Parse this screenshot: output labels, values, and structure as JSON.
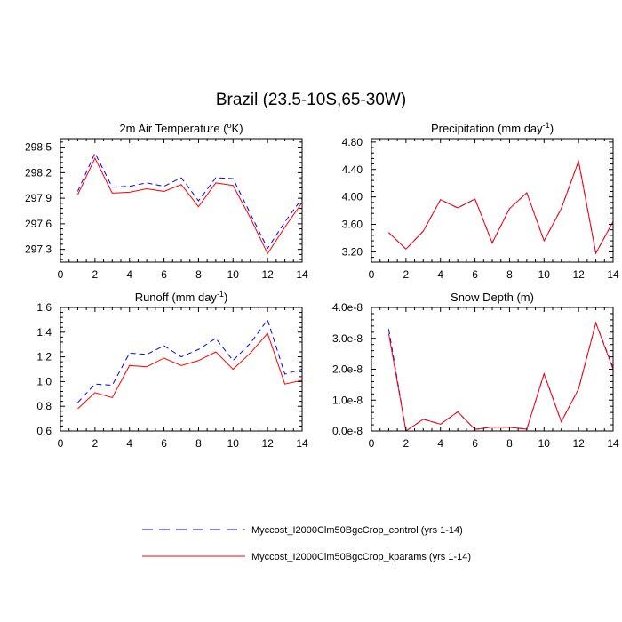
{
  "figure": {
    "title": "Brazil (23.5-10S,65-30W)"
  },
  "legend": {
    "position": "bottom-center",
    "entries": [
      {
        "label": "Myccost_I2000Clm50BgcCrop_control (yrs 1-14)",
        "color": "#0000ff",
        "style": "dashed"
      },
      {
        "label": "Myccost_I2000Clm50BgcCrop_kparams (yrs 1-14)",
        "color": "#ff0000",
        "style": "solid"
      }
    ]
  },
  "chart_data": [
    {
      "type": "line",
      "title": "2m Air Temperature (",
      "title_sup": "o",
      "title_suffix": "K)",
      "xlabel": "",
      "ylabel": "",
      "xlim": [
        0,
        14
      ],
      "ylim": [
        297.15,
        298.6
      ],
      "x_ticks": [
        0,
        2,
        4,
        6,
        8,
        10,
        12,
        14
      ],
      "x_tick_labels": [
        "0",
        "2",
        "4",
        "6",
        "8",
        "10",
        "12",
        "14"
      ],
      "y_ticks": [
        297.3,
        297.6,
        297.9,
        298.2,
        298.5
      ],
      "y_tick_labels": [
        "297.3",
        "297.6",
        "297.9",
        "298.2",
        "298.5"
      ],
      "grid": false,
      "x": [
        1,
        2,
        3,
        4,
        5,
        6,
        7,
        8,
        9,
        10,
        11,
        12,
        13,
        14
      ],
      "series": [
        {
          "name": "Myccost_I2000Clm50BgcCrop_control (yrs 1-14)",
          "color": "#0000ff",
          "dash": "dashed",
          "values": [
            297.98,
            298.43,
            298.03,
            298.04,
            298.08,
            298.04,
            298.14,
            297.87,
            298.14,
            298.13,
            297.72,
            297.31,
            297.62,
            297.9
          ]
        },
        {
          "name": "Myccost_I2000Clm50BgcCrop_kparams (yrs 1-14)",
          "color": "#ff0000",
          "dash": "solid",
          "values": [
            297.94,
            298.37,
            297.96,
            297.97,
            298.01,
            297.98,
            298.06,
            297.8,
            298.08,
            298.05,
            297.67,
            297.25,
            297.56,
            297.85
          ]
        }
      ]
    },
    {
      "type": "line",
      "title": "Precipitation (mm day",
      "title_sup": "-1",
      "title_suffix": ")",
      "xlabel": "",
      "ylabel": "",
      "xlim": [
        0,
        14
      ],
      "ylim": [
        3.05,
        4.85
      ],
      "x_ticks": [
        0,
        2,
        4,
        6,
        8,
        10,
        12,
        14
      ],
      "x_tick_labels": [
        "0",
        "2",
        "4",
        "6",
        "8",
        "10",
        "12",
        "14"
      ],
      "y_ticks": [
        3.2,
        3.6,
        4.0,
        4.4,
        4.8
      ],
      "y_tick_labels": [
        "3.20",
        "3.60",
        "4.00",
        "4.40",
        "4.80"
      ],
      "grid": false,
      "x": [
        1,
        2,
        3,
        4,
        5,
        6,
        7,
        8,
        9,
        10,
        11,
        12,
        13,
        14
      ],
      "series": [
        {
          "name": "Myccost_I2000Clm50BgcCrop_control (yrs 1-14)",
          "color": "#0000ff",
          "dash": "dashed",
          "values": [
            3.48,
            3.24,
            3.5,
            3.96,
            3.84,
            3.97,
            3.33,
            3.83,
            4.06,
            3.36,
            3.83,
            4.52,
            3.18,
            3.64
          ]
        },
        {
          "name": "Myccost_I2000Clm50BgcCrop_kparams (yrs 1-14)",
          "color": "#ff0000",
          "dash": "solid",
          "values": [
            3.48,
            3.24,
            3.5,
            3.96,
            3.84,
            3.97,
            3.33,
            3.83,
            4.06,
            3.36,
            3.83,
            4.52,
            3.18,
            3.64
          ]
        }
      ]
    },
    {
      "type": "line",
      "title": "Runoff (mm day",
      "title_sup": "-1",
      "title_suffix": ")",
      "xlabel": "",
      "ylabel": "",
      "xlim": [
        0,
        14
      ],
      "ylim": [
        0.6,
        1.6
      ],
      "x_ticks": [
        0,
        2,
        4,
        6,
        8,
        10,
        12,
        14
      ],
      "x_tick_labels": [
        "0",
        "2",
        "4",
        "6",
        "8",
        "10",
        "12",
        "14"
      ],
      "y_ticks": [
        0.6,
        0.8,
        1.0,
        1.2,
        1.4,
        1.6
      ],
      "y_tick_labels": [
        "0.6",
        "0.8",
        "1.0",
        "1.2",
        "1.4",
        "1.6"
      ],
      "grid": false,
      "x": [
        1,
        2,
        3,
        4,
        5,
        6,
        7,
        8,
        9,
        10,
        11,
        12,
        13,
        14
      ],
      "series": [
        {
          "name": "Myccost_I2000Clm50BgcCrop_control (yrs 1-14)",
          "color": "#0000ff",
          "dash": "dashed",
          "values": [
            0.83,
            0.98,
            0.97,
            1.23,
            1.22,
            1.29,
            1.2,
            1.26,
            1.35,
            1.17,
            1.31,
            1.5,
            1.06,
            1.1
          ]
        },
        {
          "name": "Myccost_I2000Clm50BgcCrop_kparams (yrs 1-14)",
          "color": "#ff0000",
          "dash": "solid",
          "values": [
            0.78,
            0.91,
            0.87,
            1.13,
            1.12,
            1.19,
            1.13,
            1.17,
            1.24,
            1.1,
            1.23,
            1.39,
            0.98,
            1.01
          ]
        }
      ]
    },
    {
      "type": "line",
      "title": "Snow Depth (m)",
      "title_sup": "",
      "title_suffix": "",
      "xlabel": "",
      "ylabel": "",
      "xlim": [
        0,
        14
      ],
      "ylim": [
        0,
        4e-08
      ],
      "x_ticks": [
        0,
        2,
        4,
        6,
        8,
        10,
        12,
        14
      ],
      "x_tick_labels": [
        "0",
        "2",
        "4",
        "6",
        "8",
        "10",
        "12",
        "14"
      ],
      "y_ticks": [
        0,
        1e-08,
        2e-08,
        3e-08,
        4e-08
      ],
      "y_tick_labels": [
        "0.0e-8",
        "1.0e-8",
        "2.0e-8",
        "3.0e-8",
        "4.0e-8"
      ],
      "grid": false,
      "x": [
        1,
        2,
        3,
        4,
        5,
        6,
        7,
        8,
        9,
        10,
        11,
        12,
        13,
        14
      ],
      "series": [
        {
          "name": "Myccost_I2000Clm50BgcCrop_control (yrs 1-14)",
          "color": "#0000ff",
          "dash": "dashed",
          "values": [
            3.3e-08,
            0.0,
            3.8e-09,
            2.2e-09,
            6.2e-09,
            5e-10,
            1.3e-09,
            1.2e-09,
            6e-10,
            1.85e-08,
            3e-09,
            1.36e-08,
            3.5e-08,
            2.05e-08
          ]
        },
        {
          "name": "Myccost_I2000Clm50BgcCrop_kparams (yrs 1-14)",
          "color": "#ff0000",
          "dash": "solid",
          "values": [
            3.15e-08,
            0.0,
            3.8e-09,
            2.2e-09,
            6.2e-09,
            5e-10,
            1.3e-09,
            1.2e-09,
            6e-10,
            1.85e-08,
            3e-09,
            1.36e-08,
            3.5e-08,
            2e-08
          ]
        }
      ]
    }
  ]
}
